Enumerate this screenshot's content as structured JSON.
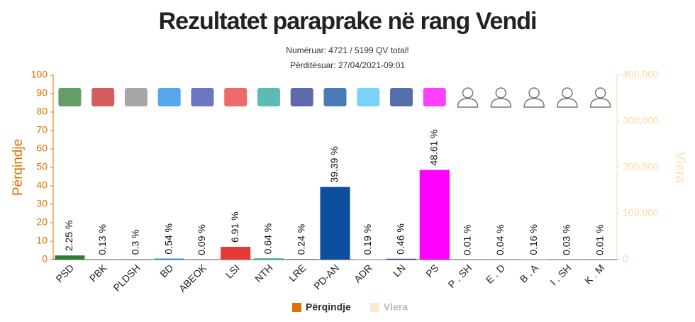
{
  "chart_data": {
    "type": "bar",
    "title": "Rezultatet paraprake në rang Vendi",
    "subtitle": [
      "Numëruar: 4721 / 5199 QV total!",
      "Përditësuar: 27/04/2021-09:01"
    ],
    "y_label": "Përqindje",
    "y2_label": "Vlera",
    "categories": [
      "PSD",
      "PBK",
      "PLDSH",
      "BD",
      "ABEOK",
      "LSI",
      "NTH",
      "LRE",
      "PD-AN",
      "ADR",
      "LN",
      "PS",
      "P . SH",
      "E . D",
      "B . A",
      "I . SH",
      "K . M"
    ],
    "series": [
      {
        "name": "Përqindje",
        "color": "#e07000",
        "colors": [
          "#2e7d32",
          "#c62828",
          "#888888",
          "#1e88e5",
          "#3949ab",
          "#e53935",
          "#26a69a",
          "#283593",
          "#0d4f9e",
          "#4fc3f7",
          "#1a3e8c",
          "#ff00ff",
          "#999999",
          "#999999",
          "#999999",
          "#999999",
          "#999999"
        ],
        "values": [
          2.25,
          0.13,
          0.3,
          0.54,
          0.09,
          6.91,
          0.64,
          0.24,
          39.39,
          0.19,
          0.46,
          48.61,
          0.01,
          0.04,
          0.16,
          0.03,
          0.01
        ],
        "value_labels": [
          "2.25 %",
          "0.13 %",
          "0.3 %",
          "0.54 %",
          "0.09 %",
          "6.91 %",
          "0.64 %",
          "0.24 %",
          "39.39 %",
          "0.19 %",
          "0.46 %",
          "48.61 %",
          "0.01 %",
          "0.04 %",
          "0.16 %",
          "0.03 %",
          "0.01 %"
        ]
      },
      {
        "name": "Vlera",
        "color": "#fbe9cf",
        "axis": "y2",
        "values": [
          null,
          null,
          null,
          null,
          null,
          null,
          null,
          null,
          null,
          null,
          null,
          null,
          null,
          null,
          null,
          null,
          null
        ]
      }
    ],
    "ylim": [
      0,
      100
    ],
    "yticks": [
      0,
      10,
      20,
      30,
      40,
      50,
      60,
      70,
      80,
      90,
      100
    ],
    "y2lim": [
      0,
      400000
    ],
    "y2ticks": [
      0,
      {
        "value": 100000,
        "label": "100,000"
      },
      {
        "value": 200000,
        "label": "200,000"
      },
      {
        "value": 300000,
        "label": "300,000"
      },
      {
        "value": 400000,
        "label": "400,000"
      }
    ],
    "legend": "bottom"
  }
}
